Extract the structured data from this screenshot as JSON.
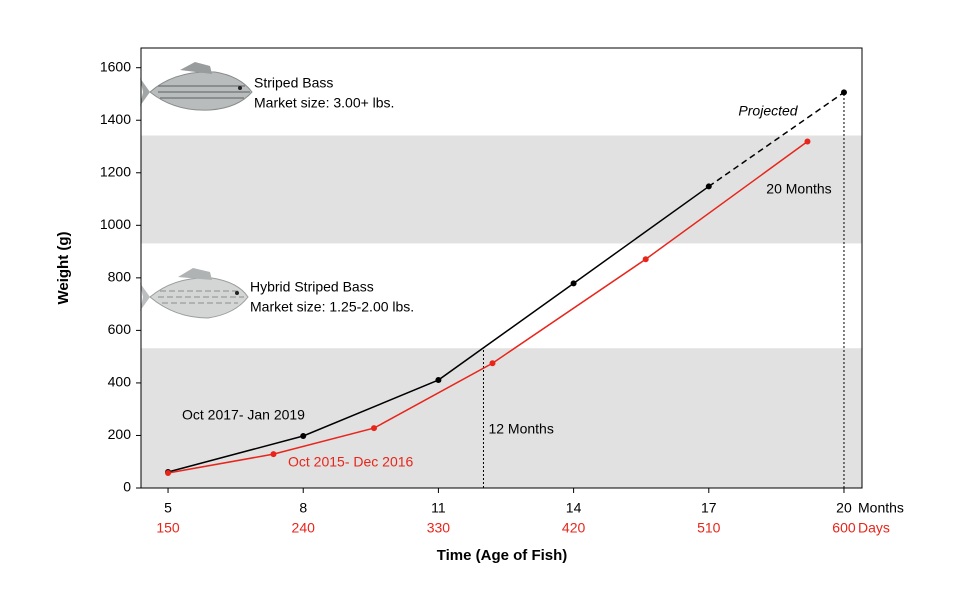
{
  "chart_data": {
    "type": "line",
    "x_axis_label": "Time (Age of Fish)",
    "y_axis_label": "Weight (g)",
    "xlim": [
      4.4,
      20.4
    ],
    "xticks": [
      5,
      8,
      11,
      14,
      17,
      20
    ],
    "x_unit_label": "Months",
    "x2lim": [
      132,
      612
    ],
    "x2ticks": [
      150,
      240,
      330,
      420,
      510,
      600
    ],
    "x2_unit_label": "Days",
    "x2_color": "#e8251b",
    "ylim": [
      0,
      1675
    ],
    "yticks": [
      0,
      200,
      400,
      600,
      800,
      1000,
      1200,
      1400,
      1600
    ],
    "bands": [
      [
        0,
        532
      ],
      [
        931,
        1342
      ]
    ],
    "band_color": "#e1e1e1",
    "series": [
      {
        "name": "Oct 2017- Jan 2019",
        "color": "#000000",
        "x": [
          5,
          8,
          11,
          14,
          17,
          20
        ],
        "values": [
          61,
          198,
          411,
          779,
          1148,
          1506
        ],
        "dashed_from_index": 4
      },
      {
        "name": "Oct 2015- Dec 2016",
        "color": "#e8251b",
        "x": [
          5,
          7.34,
          9.57,
          12.2,
          15.6,
          19.19
        ],
        "values": [
          57,
          129,
          228,
          475,
          871,
          1319
        ]
      }
    ],
    "projected_label": "Projected",
    "reference_lines": [
      {
        "x": 12,
        "label": "12 Months"
      },
      {
        "x": 20,
        "label": "20 Months"
      }
    ],
    "annotations": [
      {
        "title": "Striped Bass",
        "text": "Market size: 3.00+ lbs."
      },
      {
        "title": "Hybrid Striped Bass",
        "text": "Market size: 1.25-2.00 lbs."
      }
    ]
  }
}
